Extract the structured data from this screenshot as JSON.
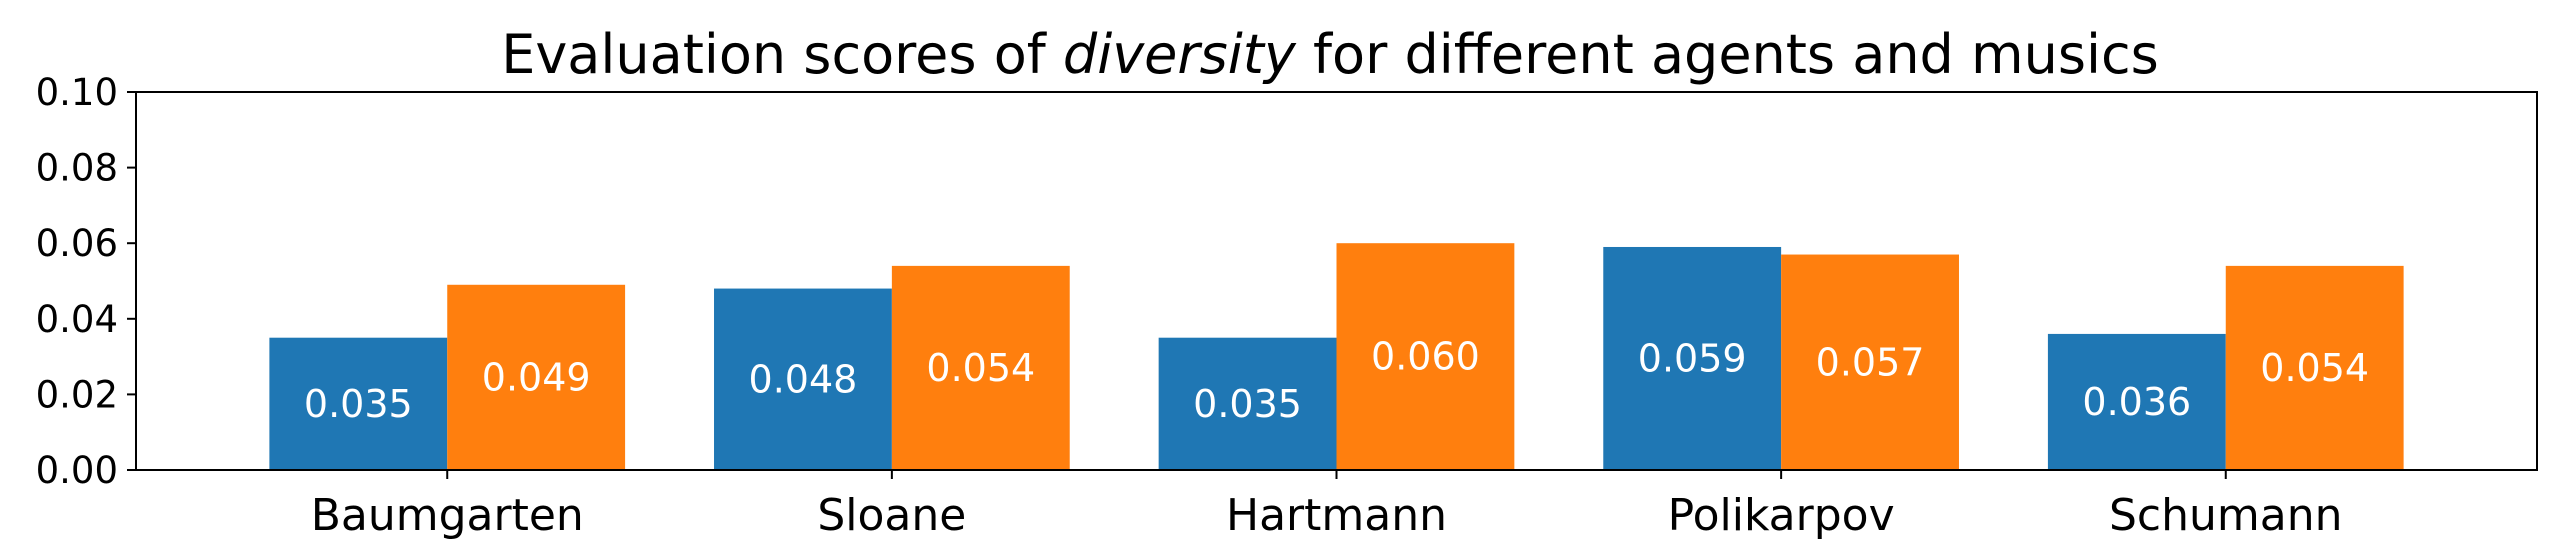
{
  "chart_data": {
    "type": "bar",
    "title": {
      "prefix": "Evaluation scores of ",
      "emphasis": "diversity",
      "suffix": " for different agents and musics"
    },
    "categories": [
      "Baumgarten",
      "Sloane",
      "Hartmann",
      "Polikarpov",
      "Schumann"
    ],
    "series": [
      {
        "color": "#1f77b4",
        "values": [
          0.035,
          0.048,
          0.035,
          0.059,
          0.036
        ],
        "labels": [
          "0.035",
          "0.048",
          "0.035",
          "0.059",
          "0.036"
        ]
      },
      {
        "color": "#ff7f0e",
        "values": [
          0.049,
          0.054,
          0.06,
          0.057,
          0.054
        ],
        "labels": [
          "0.049",
          "0.054",
          "0.060",
          "0.057",
          "0.054"
        ]
      }
    ],
    "ylim": [
      0,
      0.1
    ],
    "yticks": [
      "0.00",
      "0.02",
      "0.04",
      "0.06",
      "0.08",
      "0.10"
    ],
    "grid": false,
    "legend": "none"
  }
}
